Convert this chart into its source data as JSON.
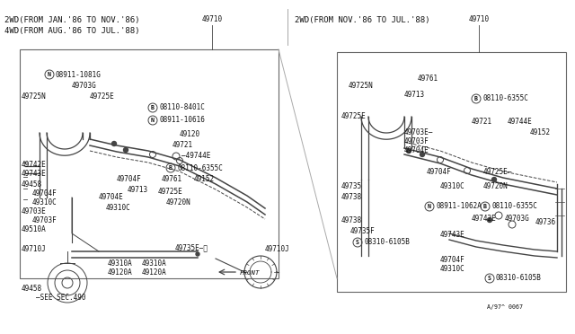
{
  "bg_color": "#ffffff",
  "line_color": "#444444",
  "text_color": "#111111",
  "border_color": "#666666",
  "title_left1": "2WD(FROM JAN.'86 TO NOV.'86)",
  "title_left2": "4WD(FROM AUG.'86 TO JUL.'88)",
  "title_right": "2WD(FROM NOV.'86 TO JUL.'88)",
  "footer": "A/97^ 0067",
  "font_size_title": 6.5,
  "font_size_label": 5.5,
  "font_size_small": 4.8
}
